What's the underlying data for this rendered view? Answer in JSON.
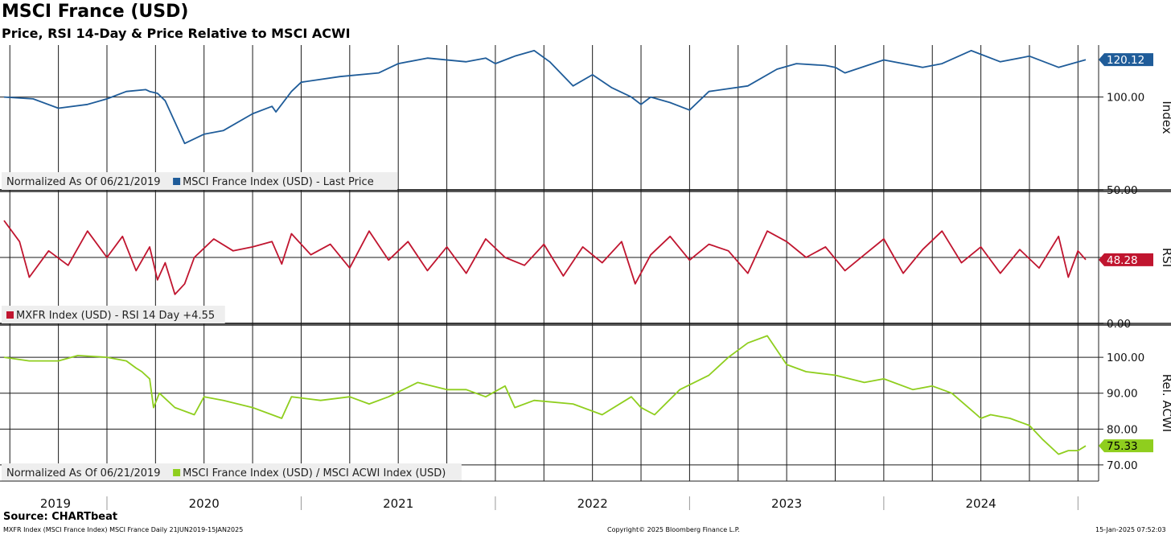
{
  "header": {
    "title": "MSCI France (USD)",
    "subtitle": "Price, RSI 14-Day & Price Relative to MSCI ACWI"
  },
  "footer": {
    "source": "Source: CHARTbeat",
    "left_note": "MXFR Index (MSCI France Index) MSCI France  Daily 21JUN2019-15JAN2025",
    "copyright": "Copyright© 2025 Bloomberg Finance L.P.",
    "timestamp": "15-Jan-2025 07:52:03"
  },
  "x_axis": {
    "years": [
      "2019",
      "2020",
      "2021",
      "2022",
      "2023",
      "2024"
    ]
  },
  "colors": {
    "price": "#1f5c99",
    "rsi": "#c0152f",
    "relative": "#8fce1e"
  },
  "chart_data": [
    {
      "type": "line",
      "panel": "price",
      "axis_title": "Index",
      "yticks": [
        "100.00",
        "50.00"
      ],
      "ylim": [
        50,
        128
      ],
      "legend": {
        "note": "Normalized As Of 06/21/2019",
        "series": "MSCI France Index (USD) - Last Price"
      },
      "last_value": "120.12",
      "series": [
        {
          "name": "MSCI France Index (USD) - Last Price",
          "x": [
            2019.47,
            2019.62,
            2019.75,
            2019.9,
            2020.0,
            2020.1,
            2020.2,
            2020.22,
            2020.26,
            2020.3,
            2020.4,
            2020.5,
            2020.6,
            2020.75,
            2020.85,
            2020.87,
            2020.95,
            2021.0,
            2021.2,
            2021.4,
            2021.5,
            2021.65,
            2021.85,
            2021.95,
            2022.0,
            2022.1,
            2022.2,
            2022.28,
            2022.4,
            2022.5,
            2022.6,
            2022.7,
            2022.75,
            2022.8,
            2022.9,
            2023.0,
            2023.1,
            2023.3,
            2023.45,
            2023.55,
            2023.7,
            2023.75,
            2023.8,
            2024.0,
            2024.2,
            2024.3,
            2024.45,
            2024.5,
            2024.6,
            2024.75,
            2024.9,
            2025.04
          ],
          "values": [
            100,
            99,
            94,
            96,
            99,
            103,
            104,
            103,
            102,
            98,
            75,
            80,
            82,
            91,
            95,
            92,
            103,
            108,
            111,
            113,
            118,
            121,
            119,
            121,
            118,
            122,
            125,
            119,
            106,
            112,
            105,
            100,
            96,
            100,
            97,
            93,
            103,
            106,
            115,
            118,
            117,
            116,
            113,
            120,
            116,
            118,
            125,
            123,
            119,
            122,
            116,
            120.12
          ]
        }
      ]
    },
    {
      "type": "line",
      "panel": "rsi",
      "axis_title": "RSI",
      "yticks": [
        "0.00"
      ],
      "ylim": [
        0,
        100
      ],
      "legend": {
        "note": "",
        "series": "MXFR Index (USD) - RSI 14 Day +4.55"
      },
      "last_value": "48.28",
      "series": [
        {
          "name": "MXFR Index (USD) - RSI 14 Day +4.55",
          "x": [
            2019.47,
            2019.55,
            2019.6,
            2019.7,
            2019.8,
            2019.9,
            2020.0,
            2020.08,
            2020.15,
            2020.22,
            2020.26,
            2020.3,
            2020.35,
            2020.4,
            2020.45,
            2020.55,
            2020.65,
            2020.75,
            2020.85,
            2020.9,
            2020.95,
            2021.05,
            2021.15,
            2021.25,
            2021.35,
            2021.45,
            2021.55,
            2021.65,
            2021.75,
            2021.85,
            2021.95,
            2022.05,
            2022.15,
            2022.25,
            2022.35,
            2022.45,
            2022.55,
            2022.65,
            2022.72,
            2022.8,
            2022.9,
            2023.0,
            2023.1,
            2023.2,
            2023.3,
            2023.4,
            2023.5,
            2023.6,
            2023.7,
            2023.8,
            2023.9,
            2024.0,
            2024.1,
            2024.2,
            2024.3,
            2024.4,
            2024.5,
            2024.6,
            2024.7,
            2024.8,
            2024.9,
            2024.95,
            2025.0,
            2025.04
          ],
          "values": [
            78,
            62,
            35,
            55,
            44,
            70,
            50,
            66,
            40,
            58,
            33,
            46,
            22,
            30,
            50,
            64,
            55,
            58,
            62,
            45,
            68,
            52,
            60,
            42,
            70,
            48,
            62,
            40,
            58,
            38,
            64,
            50,
            44,
            60,
            36,
            58,
            46,
            62,
            30,
            52,
            66,
            48,
            60,
            55,
            38,
            70,
            62,
            50,
            58,
            40,
            52,
            64,
            38,
            56,
            70,
            46,
            58,
            38,
            56,
            42,
            66,
            35,
            55,
            48.28
          ]
        }
      ]
    },
    {
      "type": "line",
      "panel": "relative",
      "axis_title": "Rel. ACWI",
      "yticks": [
        "100.00",
        "90.00",
        "80.00",
        "70.00"
      ],
      "ylim": [
        65.5,
        109
      ],
      "legend": {
        "note": "Normalized As Of 06/21/2019",
        "series": "MSCI France Index (USD) / MSCI ACWI Index (USD)"
      },
      "last_value": "75.33",
      "series": [
        {
          "name": "MSCI France Index (USD) / MSCI ACWI Index (USD)",
          "x": [
            2019.47,
            2019.6,
            2019.75,
            2019.85,
            2020.0,
            2020.1,
            2020.15,
            2020.18,
            2020.22,
            2020.24,
            2020.27,
            2020.35,
            2020.45,
            2020.5,
            2020.6,
            2020.75,
            2020.85,
            2020.9,
            2020.95,
            2021.1,
            2021.25,
            2021.35,
            2021.45,
            2021.6,
            2021.75,
            2021.85,
            2021.95,
            2022.05,
            2022.1,
            2022.2,
            2022.4,
            2022.55,
            2022.7,
            2022.75,
            2022.82,
            2022.95,
            2023.1,
            2023.2,
            2023.25,
            2023.3,
            2023.4,
            2023.5,
            2023.6,
            2023.75,
            2023.9,
            2024.0,
            2024.15,
            2024.25,
            2024.35,
            2024.5,
            2024.55,
            2024.65,
            2024.75,
            2024.82,
            2024.9,
            2024.95,
            2025.0,
            2025.04
          ],
          "values": [
            100,
            99,
            99,
            100.5,
            100,
            99,
            97,
            96,
            94,
            86,
            90,
            86,
            84,
            89,
            88,
            86,
            84,
            83,
            89,
            88,
            89,
            87,
            89,
            93,
            91,
            91,
            89,
            92,
            86,
            88,
            87,
            84,
            89,
            86,
            84,
            91,
            95,
            100,
            102,
            104,
            106,
            98,
            96,
            95,
            93,
            94,
            91,
            92,
            90,
            83,
            84,
            83,
            81,
            77,
            73,
            74,
            74,
            75.33
          ]
        }
      ]
    }
  ]
}
